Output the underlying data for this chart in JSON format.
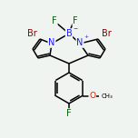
{
  "bg_color": "#f0f4f0",
  "line_color": "#000000",
  "bond_width": 1.1,
  "atom_colors": {
    "C": "#000000",
    "N": "#1a1aff",
    "B": "#1a1aff",
    "Br": "#8B0000",
    "F": "#006400",
    "O": "#cc2200"
  },
  "font_size": 7.0
}
